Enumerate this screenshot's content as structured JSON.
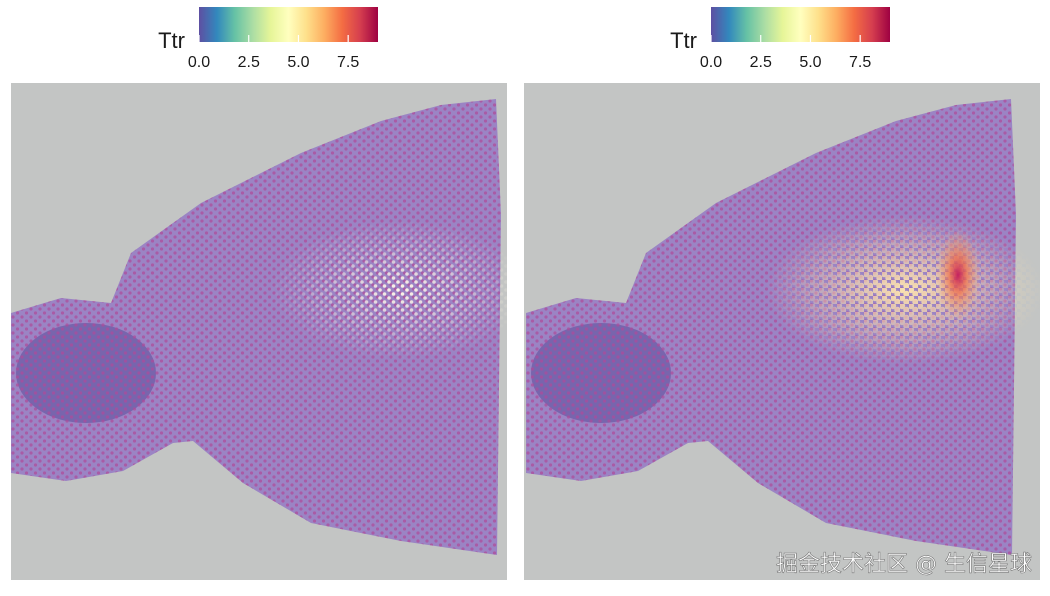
{
  "chart_data": [
    {
      "type": "spatial",
      "legend_title": "Ttr",
      "colorbar": {
        "lim": [
          0,
          9.0
        ],
        "ticks": [
          {
            "value": 0,
            "label": "0.0"
          },
          {
            "value": 2.5,
            "label": "2.5"
          },
          {
            "value": 5,
            "label": "5.0"
          },
          {
            "value": 7.5,
            "label": "7.5"
          }
        ],
        "colors": [
          "#5e4fa2",
          "#3288bd",
          "#66c2a5",
          "#abdda4",
          "#e6f598",
          "#ffffbf",
          "#fee08b",
          "#fdae61",
          "#f46d43",
          "#d53e4f",
          "#9e0142"
        ]
      }
    },
    {
      "type": "spatial",
      "legend_title": "Ttr",
      "colorbar": {
        "lim": [
          0,
          9.0
        ],
        "ticks": [
          {
            "value": 0,
            "label": "0.0"
          },
          {
            "value": 2.5,
            "label": "2.5"
          },
          {
            "value": 5,
            "label": "5.0"
          },
          {
            "value": 7.5,
            "label": "7.5"
          }
        ],
        "colors": [
          "#5e4fa2",
          "#3288bd",
          "#66c2a5",
          "#abdda4",
          "#e6f598",
          "#ffffbf",
          "#fee08b",
          "#fdae61",
          "#f46d43",
          "#d53e4f",
          "#9e0142"
        ]
      }
    }
  ],
  "watermark": "掘金技术社区 @ 生信星球"
}
